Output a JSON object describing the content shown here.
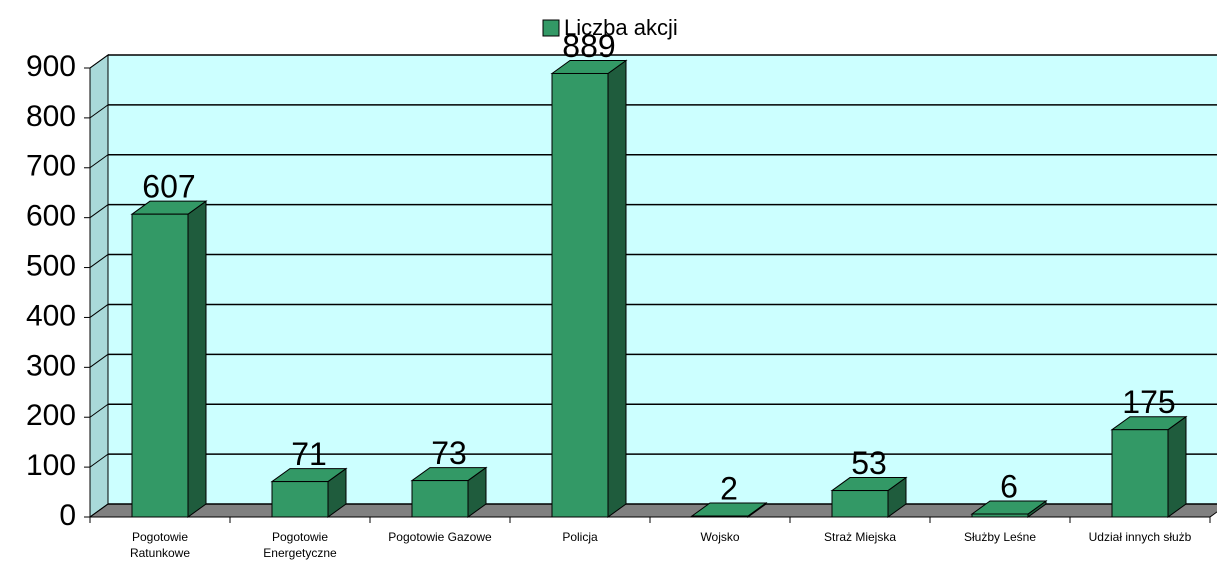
{
  "chart_data": {
    "type": "bar3d",
    "categories": [
      "Pogotowie Ratunkowe",
      "Pogotowie Energetyczne",
      "Pogotowie Gazowe",
      "Policja",
      "Wojsko",
      "Straż Miejska",
      "Służby Leśne",
      "Udział innych służb"
    ],
    "series": [
      {
        "name": "Liczba akcji",
        "color": "#339966",
        "values": [
          607,
          71,
          73,
          889,
          2,
          53,
          6,
          175
        ]
      }
    ],
    "ylim": [
      0,
      900
    ],
    "yticks": [
      0,
      100,
      200,
      300,
      400,
      500,
      600,
      700,
      800,
      900
    ],
    "grid": true,
    "legend": "top",
    "wall_color": "#ccffff"
  }
}
